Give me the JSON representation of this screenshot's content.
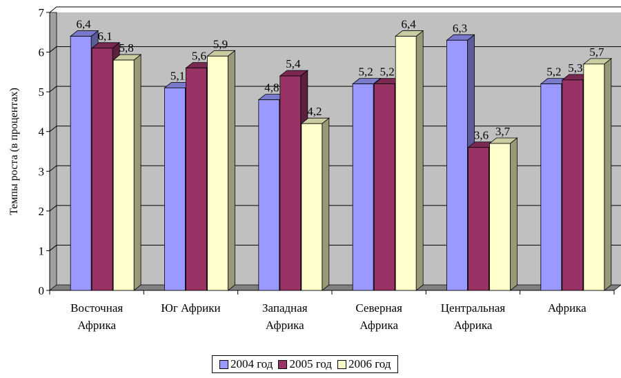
{
  "chart_data": {
    "type": "bar",
    "style": "3d-clustered-column",
    "title": "",
    "xlabel": "",
    "ylabel": "Темпы роста (в процентах)",
    "ylim": [
      0,
      7
    ],
    "yticks": [
      "0",
      "1",
      "2",
      "3",
      "4",
      "5",
      "6",
      "7"
    ],
    "grid": true,
    "legend_position": "bottom",
    "categories": [
      [
        "Восточная",
        "Африка"
      ],
      [
        "Юг Африки"
      ],
      [
        "Западная",
        "Африка"
      ],
      [
        "Северная",
        "Африка"
      ],
      [
        "Центральная",
        "Африка"
      ],
      [
        "Африка"
      ]
    ],
    "series": [
      {
        "name": "2004 год",
        "color": "#9999FF",
        "values": [
          6.4,
          5.1,
          4.8,
          5.2,
          6.3,
          5.2
        ],
        "labels": [
          "6,4",
          "5,1",
          "4,8",
          "5,2",
          "6,3",
          "5,2"
        ]
      },
      {
        "name": "2005 год",
        "color": "#993366",
        "values": [
          6.1,
          5.6,
          5.4,
          5.2,
          3.6,
          5.3
        ],
        "labels": [
          "6,1",
          "5,6",
          "5,4",
          "5,2",
          "3,6",
          "5,3"
        ]
      },
      {
        "name": "2006 год",
        "color": "#FFFFCC",
        "values": [
          5.8,
          5.9,
          4.2,
          6.4,
          3.7,
          5.7
        ],
        "labels": [
          "5,8",
          "5,9",
          "4,2",
          "6,4",
          "3,7",
          "5,7"
        ]
      }
    ],
    "plot_background": "#C0C0C0",
    "floor_color": "#808080"
  }
}
